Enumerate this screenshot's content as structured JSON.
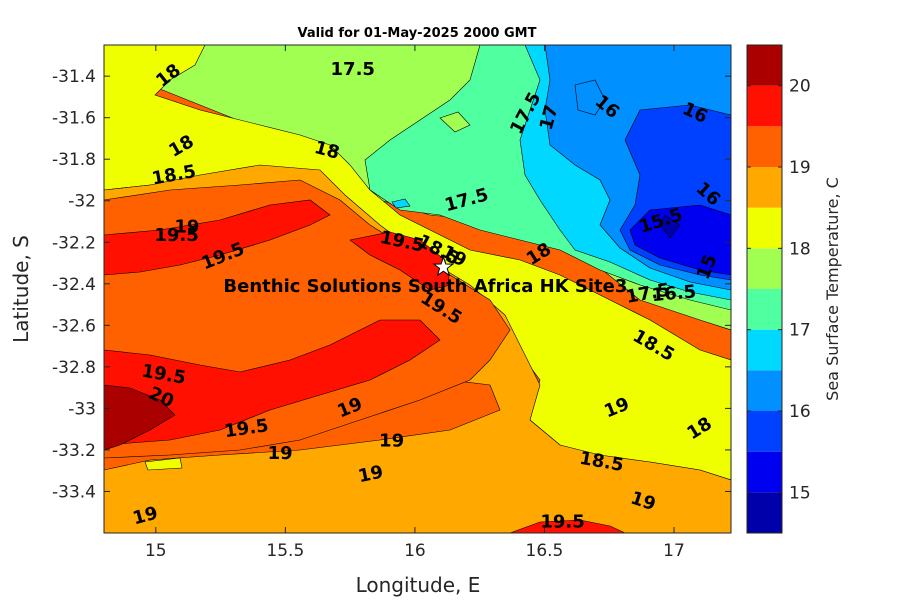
{
  "chart_data": {
    "type": "contour",
    "title": "Valid for 01-May-2025 2000 GMT",
    "xlabel": "Longitude, E",
    "ylabel": "Latitude, S",
    "colorbar_label": "Sea Surface Temperature, C",
    "xlim": [
      14.8,
      17.22
    ],
    "ylim": [
      -33.6,
      -31.25
    ],
    "x_ticks": [
      15,
      15.5,
      16,
      16.5,
      17
    ],
    "x_tick_labels": [
      "15",
      "15.5",
      "16",
      "16.5",
      "17"
    ],
    "y_ticks": [
      -31.4,
      -31.6,
      -31.8,
      -32,
      -32.2,
      -32.4,
      -32.6,
      -32.8,
      -33,
      -33.2,
      -33.4
    ],
    "y_tick_labels": [
      "-31.4",
      "-31.6",
      "-31.8",
      "-32",
      "-32.2",
      "-32.4",
      "-32.6",
      "-32.8",
      "-33",
      "-33.2",
      "-33.4"
    ],
    "colorbar": {
      "range": [
        14.5,
        20.5
      ],
      "levels": [
        14.5,
        15,
        15.5,
        16,
        16.5,
        17,
        17.5,
        18,
        18.5,
        19,
        19.5,
        20,
        20.5
      ],
      "colors": [
        "#0000AA",
        "#0000F0",
        "#0040FF",
        "#0090FF",
        "#00D8FF",
        "#50FF9F",
        "#A0FF50",
        "#F0FF00",
        "#FFA800",
        "#FF6000",
        "#FF1000",
        "#AA0000"
      ],
      "tick_values": [
        15,
        16,
        17,
        18,
        19,
        20
      ],
      "tick_labels": [
        "15",
        "16",
        "17",
        "18",
        "19",
        "20"
      ]
    },
    "site": {
      "name": "Benthic Solutions South Africa HK Site3",
      "lon": 16.11,
      "lat": -32.32
    },
    "contour_labels": [
      {
        "text": "18",
        "lon": 15.05,
        "lat": -31.4,
        "rot": -38
      },
      {
        "text": "17.5",
        "lon": 15.76,
        "lat": -31.37,
        "rot": 0
      },
      {
        "text": "17.5",
        "lon": 16.43,
        "lat": -31.58,
        "rot": -62
      },
      {
        "text": "17",
        "lon": 16.52,
        "lat": -31.6,
        "rot": -75
      },
      {
        "text": "16",
        "lon": 16.74,
        "lat": -31.55,
        "rot": 40
      },
      {
        "text": "16",
        "lon": 17.08,
        "lat": -31.58,
        "rot": 25
      },
      {
        "text": "18",
        "lon": 15.1,
        "lat": -31.74,
        "rot": -30
      },
      {
        "text": "18",
        "lon": 15.66,
        "lat": -31.76,
        "rot": 15
      },
      {
        "text": "18.5",
        "lon": 15.07,
        "lat": -31.88,
        "rot": -10
      },
      {
        "text": "16",
        "lon": 17.13,
        "lat": -31.97,
        "rot": 42
      },
      {
        "text": "17.5",
        "lon": 16.2,
        "lat": -32.0,
        "rot": -15
      },
      {
        "text": "15.5",
        "lon": 16.95,
        "lat": -32.1,
        "rot": -18
      },
      {
        "text": "19",
        "lon": 15.12,
        "lat": -32.13,
        "rot": 0
      },
      {
        "text": "19.5",
        "lon": 15.08,
        "lat": -32.17,
        "rot": 0
      },
      {
        "text": "19.5",
        "lon": 15.95,
        "lat": -32.2,
        "rot": 12
      },
      {
        "text": "18.5",
        "lon": 16.09,
        "lat": -32.24,
        "rot": 28
      },
      {
        "text": "19",
        "lon": 16.15,
        "lat": -32.27,
        "rot": 28
      },
      {
        "text": "18",
        "lon": 16.48,
        "lat": -32.26,
        "rot": -32
      },
      {
        "text": "15",
        "lon": 17.13,
        "lat": -32.32,
        "rot": -68
      },
      {
        "text": "19.5",
        "lon": 15.26,
        "lat": -32.27,
        "rot": -22
      },
      {
        "text": "17.5",
        "lon": 16.9,
        "lat": -32.45,
        "rot": -10
      },
      {
        "text": "16.5",
        "lon": 17.0,
        "lat": -32.45,
        "rot": -5
      },
      {
        "text": "19.5",
        "lon": 16.1,
        "lat": -32.52,
        "rot": 32
      },
      {
        "text": "18.5",
        "lon": 16.92,
        "lat": -32.7,
        "rot": 30
      },
      {
        "text": "19.5",
        "lon": 15.03,
        "lat": -32.84,
        "rot": 10
      },
      {
        "text": "20",
        "lon": 15.02,
        "lat": -32.95,
        "rot": 25
      },
      {
        "text": "19.5",
        "lon": 15.35,
        "lat": -33.1,
        "rot": -8
      },
      {
        "text": "19",
        "lon": 15.75,
        "lat": -33.0,
        "rot": -22
      },
      {
        "text": "19",
        "lon": 16.78,
        "lat": -33.0,
        "rot": -22
      },
      {
        "text": "18",
        "lon": 17.1,
        "lat": -33.1,
        "rot": -32
      },
      {
        "text": "19",
        "lon": 15.91,
        "lat": -33.16,
        "rot": 0
      },
      {
        "text": "19",
        "lon": 15.48,
        "lat": -33.22,
        "rot": 0
      },
      {
        "text": "18.5",
        "lon": 16.72,
        "lat": -33.26,
        "rot": 10
      },
      {
        "text": "19",
        "lon": 15.83,
        "lat": -33.32,
        "rot": -12
      },
      {
        "text": "19",
        "lon": 16.88,
        "lat": -33.45,
        "rot": 18
      },
      {
        "text": "19",
        "lon": 14.96,
        "lat": -33.52,
        "rot": -15
      },
      {
        "text": "19.5",
        "lon": 16.57,
        "lat": -33.55,
        "rot": 0
      }
    ]
  }
}
